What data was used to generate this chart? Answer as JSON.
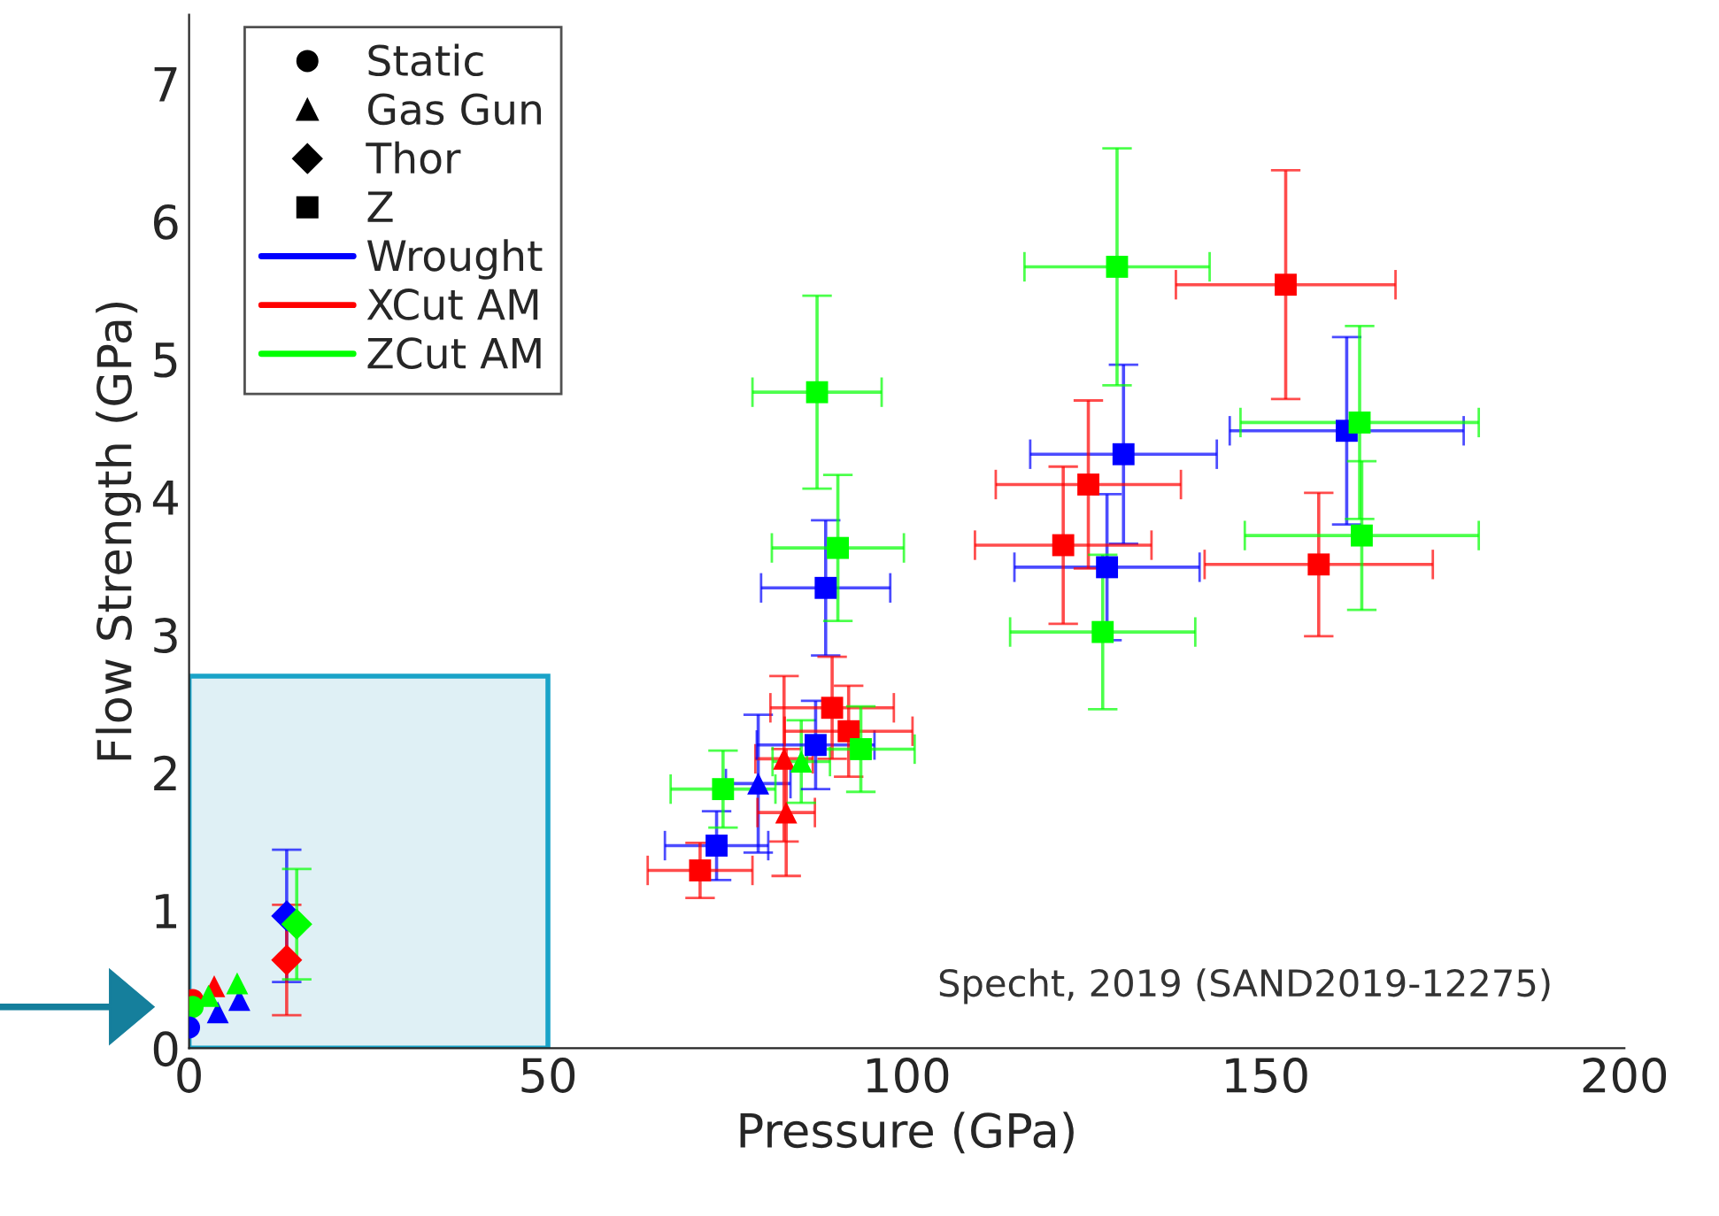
{
  "chart_data": {
    "type": "scatter",
    "xlabel": "Pressure (GPa)",
    "ylabel": "Flow Strength (GPa)",
    "xlim": [
      0,
      200
    ],
    "xticks": [
      0,
      50,
      100,
      150,
      200
    ],
    "ylim": [
      0,
      7.5
    ],
    "yticks": [
      0,
      1,
      2,
      3,
      4,
      5,
      6,
      7
    ],
    "grid": false,
    "legend": "top left",
    "annotations": [
      "Specht, 2019 (SAND2019-12275)"
    ],
    "series": [
      {
        "name": "Static",
        "marker": "circle",
        "color": "#000000"
      },
      {
        "name": "Gas Gun",
        "marker": "triangle",
        "color": "#000000"
      },
      {
        "name": "Thor",
        "marker": "diamond",
        "color": "#000000"
      },
      {
        "name": "Z",
        "marker": "square",
        "color": "#000000"
      },
      {
        "name": "Wrought",
        "type": "line",
        "color": "#0000ff"
      },
      {
        "name": "XCut AM",
        "type": "line",
        "color": "#ff0000"
      },
      {
        "name": "ZCut AM",
        "type": "line",
        "color": "#00ff00"
      },
      {
        "marker": "circle",
        "color": "#ff0000",
        "x": [
          0.5
        ],
        "values": [
          0.35
        ]
      },
      {
        "marker": "circle",
        "color": "#00ff00",
        "x": [
          0.5
        ],
        "values": [
          0.3
        ]
      },
      {
        "marker": "circle",
        "color": "#0000ff",
        "x": [
          0
        ],
        "values": [
          0.15
        ]
      },
      {
        "marker": "triangle",
        "color": "#0000ff",
        "x": [
          4,
          7,
          79.3
        ],
        "values": [
          0.26,
          0.35,
          1.92
        ],
        "errors": [
          null,
          null,
          0.5
        ],
        "xerrors": [
          null,
          null,
          4.5
        ]
      },
      {
        "marker": "triangle",
        "color": "#ff0000",
        "x": [
          3.5,
          82.9,
          83.2
        ],
        "values": [
          0.45,
          2.1,
          1.71
        ],
        "errors": [
          null,
          0.6,
          0.46
        ],
        "xerrors": [
          null,
          4,
          4
        ]
      },
      {
        "marker": "triangle",
        "color": "#00ff00",
        "x": [
          2.7,
          6.7,
          85.3
        ],
        "values": [
          0.38,
          0.47,
          2.08
        ],
        "errors": [
          null,
          null,
          0.3
        ],
        "xerrors": [
          null,
          null,
          4
        ]
      },
      {
        "marker": "diamond",
        "color": "#0000ff",
        "x": [
          13.6
        ],
        "values": [
          0.96
        ],
        "errors": [
          0.48
        ]
      },
      {
        "marker": "diamond",
        "color": "#ff0000",
        "x": [
          13.6
        ],
        "values": [
          0.64
        ],
        "errors": [
          0.4
        ]
      },
      {
        "marker": "diamond",
        "color": "#00ff00",
        "x": [
          15
        ],
        "values": [
          0.9
        ],
        "errors": [
          0.4
        ]
      },
      {
        "marker": "square",
        "color": "#0000ff",
        "x": [
          73.5,
          87.3,
          88.7,
          130.2,
          127.9,
          161.3
        ],
        "values": [
          1.47,
          2.2,
          3.34,
          4.31,
          3.49,
          4.48
        ],
        "errors": [
          0.25,
          0.32,
          0.49,
          0.65,
          0.53,
          0.68
        ],
        "xerrors": [
          7.2,
          8.2,
          9,
          13,
          12.9,
          16.3
        ]
      },
      {
        "marker": "square",
        "color": "#ff0000",
        "x": [
          71.2,
          89.6,
          91.9,
          152.8,
          125.3,
          121.8,
          157.4
        ],
        "values": [
          1.29,
          2.47,
          2.3,
          5.54,
          4.09,
          3.65,
          3.51
        ],
        "errors": [
          0.2,
          0.37,
          0.33,
          0.83,
          0.61,
          0.57,
          0.52
        ],
        "xerrors": [
          7.3,
          8.6,
          8.9,
          15.3,
          12.9,
          12.3,
          15.9
        ]
      },
      {
        "marker": "square",
        "color": "#00ff00",
        "x": [
          87.5,
          90.4,
          74.4,
          93.6,
          129.3,
          127.3,
          163.1,
          163.4
        ],
        "values": [
          4.76,
          3.63,
          1.88,
          2.17,
          5.67,
          3.02,
          4.54,
          3.72
        ],
        "errors": [
          0.7,
          0.53,
          0.28,
          0.31,
          0.86,
          0.56,
          0.7,
          0.54
        ],
        "xerrors": [
          9,
          9.2,
          7.3,
          7.5,
          12.9,
          12.9,
          16.6,
          16.3
        ]
      }
    ]
  }
}
